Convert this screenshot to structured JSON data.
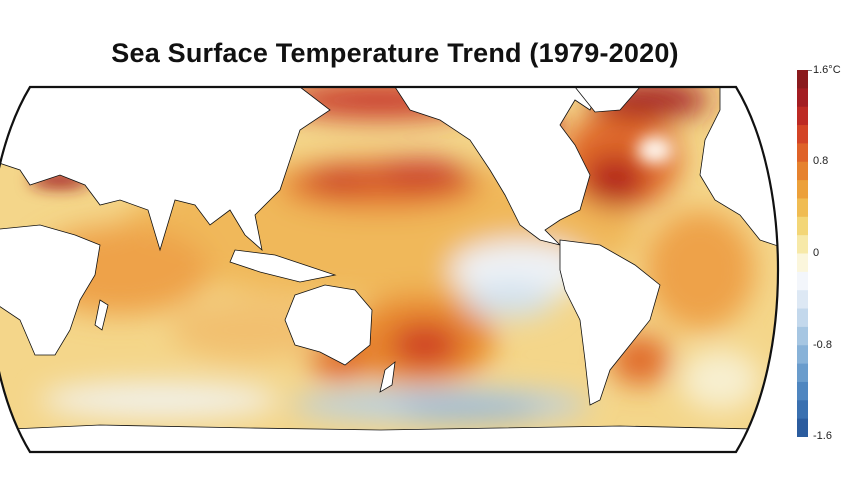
{
  "title": "Sea Surface Temperature Trend (1979-2020)",
  "colorbar": {
    "unit": "°C",
    "range": [
      -1.6,
      1.6
    ],
    "ticks": [
      {
        "value": 1.6,
        "label": "1.6°C"
      },
      {
        "value": 0.8,
        "label": "0.8"
      },
      {
        "value": 0,
        "label": "0"
      },
      {
        "value": -0.8,
        "label": "-0.8"
      },
      {
        "value": -1.6,
        "label": "-1.6"
      }
    ],
    "colors": [
      "#2b5c9e",
      "#3a70b0",
      "#4f86c0",
      "#6a9ccc",
      "#88b2d8",
      "#a6c6e2",
      "#c3d8ec",
      "#dde8f4",
      "#f3f6fb",
      "#fbf6dc",
      "#f7e9a8",
      "#f3d677",
      "#f0bc52",
      "#eca03a",
      "#e6822e",
      "#df6228",
      "#d34426",
      "#bd2a24",
      "#a31d22",
      "#8a1a1d"
    ]
  },
  "projection": "Robinson, Pacific-centered"
}
